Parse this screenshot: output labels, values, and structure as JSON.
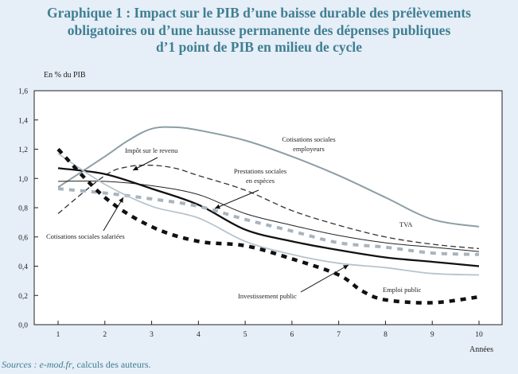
{
  "title_lines": [
    "Graphique 1 : Impact sur le PIB d’une baisse durable des prélèvements",
    "obligatoires ou d’une hausse permanente des dépenses publiques",
    "d’1 point de PIB en milieu de cycle"
  ],
  "source": {
    "label": "Sources : ",
    "name": "e-mod.fr",
    "rest": ", calculs des auteurs."
  },
  "colors": {
    "background": "#e6eef7",
    "plot_background": "#ffffff",
    "title": "#3f7f92"
  },
  "chart_data": {
    "type": "line",
    "ylabel": "En % du PIB",
    "xlabel": "Années",
    "ylim": [
      0,
      1.6
    ],
    "y_ticks": [
      "0,0",
      "0,2",
      "0,4",
      "0,6",
      "0,8",
      "1,0",
      "1,2",
      "1,4",
      "1,6"
    ],
    "x_ticks": [
      "1",
      "2",
      "3",
      "4",
      "5",
      "6",
      "7",
      "8",
      "9",
      "10"
    ],
    "grid": false,
    "series": [
      {
        "name": "Cotisations sociales employeurs",
        "style": "solid",
        "color": "#8c9ea6",
        "width": 2,
        "x": [
          1,
          2,
          2.5,
          3,
          3.5,
          4,
          5,
          6,
          7,
          8,
          9,
          10
        ],
        "values": [
          0.94,
          1.15,
          1.26,
          1.34,
          1.35,
          1.33,
          1.26,
          1.15,
          1.02,
          0.87,
          0.72,
          0.67
        ]
      },
      {
        "name": "Prestations sociales en espèces",
        "style": "dashed",
        "color": "#333333",
        "width": 1.3,
        "x": [
          1,
          2,
          2.5,
          3,
          3.5,
          4,
          5,
          6,
          7,
          8,
          9,
          10
        ],
        "values": [
          0.76,
          1.02,
          1.08,
          1.09,
          1.07,
          1.02,
          0.92,
          0.78,
          0.68,
          0.6,
          0.55,
          0.52
        ]
      },
      {
        "name": "TVA",
        "style": "solid",
        "color": "#222222",
        "width": 1,
        "x": [
          1,
          2,
          3,
          4,
          5,
          6,
          7,
          8,
          9,
          10
        ],
        "values": [
          0.98,
          0.98,
          0.95,
          0.89,
          0.76,
          0.68,
          0.61,
          0.56,
          0.53,
          0.5
        ]
      },
      {
        "name": "Impôt sur le revenu",
        "style": "solid",
        "color": "#111111",
        "width": 2.3,
        "x": [
          1,
          2,
          3,
          4,
          5,
          6,
          7,
          8,
          9,
          10
        ],
        "values": [
          1.07,
          1.03,
          0.93,
          0.82,
          0.65,
          0.57,
          0.51,
          0.46,
          0.43,
          0.4
        ]
      },
      {
        "name": "Cotisations sociales salariées",
        "style": "dashed",
        "color": "#a9b4bd",
        "width": 4,
        "x": [
          1,
          2,
          3,
          4,
          5,
          6,
          7,
          8,
          9,
          10
        ],
        "values": [
          0.93,
          0.9,
          0.86,
          0.81,
          0.72,
          0.64,
          0.56,
          0.53,
          0.49,
          0.48
        ]
      },
      {
        "name": "Investissement public",
        "style": "solid",
        "color": "#b8c4cc",
        "width": 1.8,
        "x": [
          1,
          2,
          3,
          4,
          5,
          6,
          7,
          8,
          9,
          10
        ],
        "values": [
          1.17,
          0.96,
          0.81,
          0.73,
          0.57,
          0.48,
          0.42,
          0.39,
          0.35,
          0.34
        ]
      },
      {
        "name": "Emploi public",
        "style": "dashed",
        "color": "#111111",
        "width": 4.5,
        "x": [
          1,
          2,
          3,
          4,
          5,
          6,
          7,
          7.5,
          8,
          9,
          10
        ],
        "values": [
          1.2,
          0.87,
          0.67,
          0.57,
          0.54,
          0.45,
          0.34,
          0.23,
          0.17,
          0.15,
          0.19
        ]
      }
    ],
    "annotations": [
      {
        "lines": [
          "Cotisations sociales",
          "employeurs"
        ],
        "series": "Cotisations sociales employeurs"
      },
      {
        "lines": [
          "Impôt sur le revenu"
        ],
        "series": "Impôt sur le revenu"
      },
      {
        "lines": [
          "Prestations sociales",
          "en espèces"
        ],
        "series": "Prestations sociales en espèces"
      },
      {
        "lines": [
          "TVA"
        ],
        "series": "TVA"
      },
      {
        "lines": [
          "Cotisations sociales salariées"
        ],
        "series": "Cotisations sociales salariées"
      },
      {
        "lines": [
          "Investissement public"
        ],
        "series": "Investissement public"
      },
      {
        "lines": [
          "Emploi public"
        ],
        "series": "Emploi public"
      }
    ]
  }
}
